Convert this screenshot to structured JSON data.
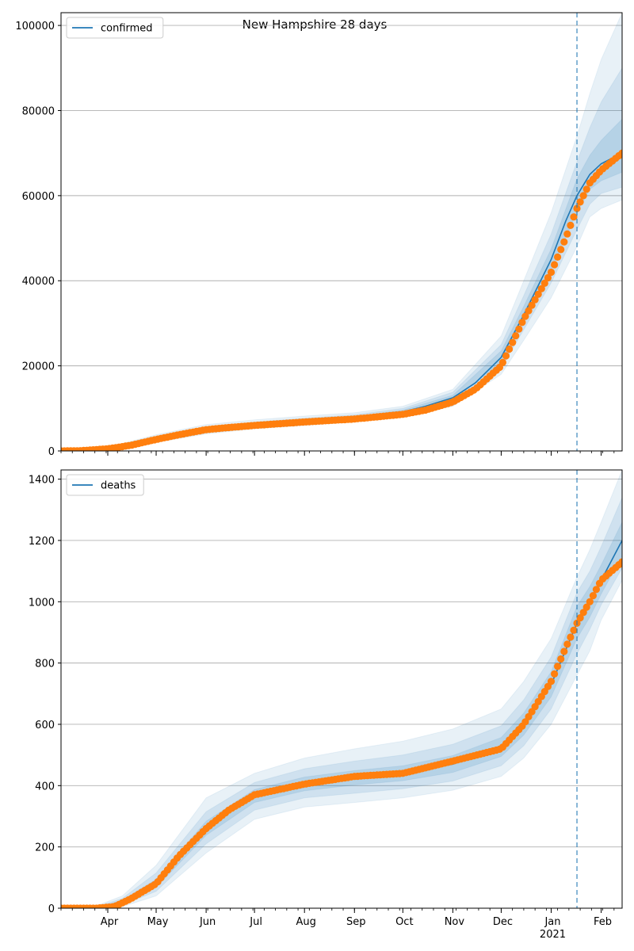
{
  "figure": {
    "title": "New Hampshire 28 days"
  },
  "colors": {
    "model_line": "#1f77b4",
    "observed": "#ff7f0e",
    "band": "#1f77b4",
    "grid": "#b0b0b0",
    "forecast_marker": "#1f77b4"
  },
  "chart_data": [
    {
      "type": "line",
      "legend": {
        "label": "confirmed",
        "position": "top-left"
      },
      "ylim": [
        0,
        103000
      ],
      "yticks": [
        0,
        20000,
        40000,
        60000,
        80000,
        100000
      ],
      "grid": true,
      "x_axis": {
        "start": "2020-03-03",
        "end": "2021-02-14",
        "show_labels": false
      },
      "forecast_start": "2021-01-17",
      "model": [
        [
          "2020-03-03",
          0
        ],
        [
          "2020-04-01",
          500
        ],
        [
          "2020-04-15",
          1500
        ],
        [
          "2020-05-01",
          2800
        ],
        [
          "2020-05-15",
          3800
        ],
        [
          "2020-06-01",
          5000
        ],
        [
          "2020-06-15",
          5600
        ],
        [
          "2020-07-01",
          6100
        ],
        [
          "2020-08-01",
          7000
        ],
        [
          "2020-09-01",
          7800
        ],
        [
          "2020-10-01",
          9200
        ],
        [
          "2020-10-15",
          10500
        ],
        [
          "2020-11-01",
          12500
        ],
        [
          "2020-11-15",
          16000
        ],
        [
          "2020-12-01",
          22000
        ],
        [
          "2020-12-15",
          32000
        ],
        [
          "2021-01-01",
          45000
        ],
        [
          "2021-01-10",
          54000
        ],
        [
          "2021-01-17",
          60000
        ],
        [
          "2021-01-25",
          65000
        ],
        [
          "2021-02-01",
          67500
        ],
        [
          "2021-02-14",
          70000
        ]
      ],
      "observed": [
        [
          "2020-03-03",
          0
        ],
        [
          "2020-03-15",
          50
        ],
        [
          "2020-04-01",
          500
        ],
        [
          "2020-04-15",
          1300
        ],
        [
          "2020-05-01",
          2700
        ],
        [
          "2020-05-15",
          3800
        ],
        [
          "2020-06-01",
          5000
        ],
        [
          "2020-06-15",
          5500
        ],
        [
          "2020-07-01",
          6000
        ],
        [
          "2020-08-01",
          6800
        ],
        [
          "2020-09-01",
          7500
        ],
        [
          "2020-10-01",
          8600
        ],
        [
          "2020-10-15",
          9600
        ],
        [
          "2020-11-01",
          11500
        ],
        [
          "2020-11-15",
          14500
        ],
        [
          "2020-12-01",
          20000
        ],
        [
          "2020-12-15",
          31000
        ],
        [
          "2021-01-01",
          42000
        ],
        [
          "2021-01-10",
          50000
        ],
        [
          "2021-01-17",
          57000
        ],
        [
          "2021-01-25",
          63000
        ],
        [
          "2021-02-01",
          66000
        ],
        [
          "2021-02-14",
          70000
        ]
      ],
      "bands": [
        {
          "opacity": 0.1,
          "points": [
            [
              "2020-03-03",
              0,
              300
            ],
            [
              "2020-04-01",
              300,
              900
            ],
            [
              "2020-05-01",
              2000,
              3800
            ],
            [
              "2020-06-01",
              4000,
              6200
            ],
            [
              "2020-07-01",
              5200,
              7300
            ],
            [
              "2020-08-01",
              6000,
              8200
            ],
            [
              "2020-09-01",
              6800,
              9000
            ],
            [
              "2020-10-01",
              8000,
              10500
            ],
            [
              "2020-11-01",
              10500,
              14500
            ],
            [
              "2020-12-01",
              18000,
              27000
            ],
            [
              "2020-12-15",
              26000,
              40000
            ],
            [
              "2021-01-01",
              36000,
              56000
            ],
            [
              "2021-01-17",
              48000,
              74000
            ],
            [
              "2021-01-25",
              55000,
              84000
            ],
            [
              "2021-02-01",
              57000,
              92000
            ],
            [
              "2021-02-14",
              59000,
              103000
            ]
          ]
        },
        {
          "opacity": 0.12,
          "points": [
            [
              "2020-03-03",
              0,
              200
            ],
            [
              "2020-04-01",
              380,
              700
            ],
            [
              "2020-05-01",
              2300,
              3400
            ],
            [
              "2020-06-01",
              4400,
              5700
            ],
            [
              "2020-07-01",
              5600,
              6800
            ],
            [
              "2020-08-01",
              6400,
              7700
            ],
            [
              "2020-09-01",
              7200,
              8500
            ],
            [
              "2020-10-01",
              8500,
              10000
            ],
            [
              "2020-11-01",
              11200,
              13800
            ],
            [
              "2020-12-01",
              19500,
              25000
            ],
            [
              "2020-12-15",
              28500,
              36500
            ],
            [
              "2021-01-01",
              39500,
              51000
            ],
            [
              "2021-01-17",
              52000,
              68000
            ],
            [
              "2021-01-25",
              58000,
              76000
            ],
            [
              "2021-02-01",
              60500,
              82000
            ],
            [
              "2021-02-14",
              62000,
              90000
            ]
          ]
        },
        {
          "opacity": 0.14,
          "points": [
            [
              "2020-03-03",
              0,
              100
            ],
            [
              "2020-04-01",
              440,
              580
            ],
            [
              "2020-05-01",
              2600,
              3050
            ],
            [
              "2020-06-01",
              4750,
              5300
            ],
            [
              "2020-07-01",
              5900,
              6350
            ],
            [
              "2020-08-01",
              6750,
              7250
            ],
            [
              "2020-09-01",
              7550,
              8100
            ],
            [
              "2020-10-01",
              8900,
              9600
            ],
            [
              "2020-11-01",
              11900,
              13100
            ],
            [
              "2020-12-01",
              20800,
              23500
            ],
            [
              "2020-12-15",
              30300,
              34000
            ],
            [
              "2021-01-01",
              42500,
              47500
            ],
            [
              "2021-01-17",
              56000,
              64000
            ],
            [
              "2021-01-25",
              61500,
              69500
            ],
            [
              "2021-02-01",
              63500,
              73000
            ],
            [
              "2021-02-14",
              65500,
              78000
            ]
          ]
        }
      ]
    },
    {
      "type": "line",
      "legend": {
        "label": "deaths",
        "position": "top-left"
      },
      "ylim": [
        0,
        1430
      ],
      "yticks": [
        0,
        200,
        400,
        600,
        800,
        1000,
        1200,
        1400
      ],
      "grid": true,
      "x_axis": {
        "start": "2020-03-03",
        "end": "2021-02-14",
        "show_labels": true,
        "ticks": [
          [
            "2020-04-01",
            "Apr",
            ""
          ],
          [
            "2020-05-01",
            "May",
            ""
          ],
          [
            "2020-06-01",
            "Jun",
            ""
          ],
          [
            "2020-07-01",
            "Jul",
            ""
          ],
          [
            "2020-08-01",
            "Aug",
            ""
          ],
          [
            "2020-09-01",
            "Sep",
            ""
          ],
          [
            "2020-10-01",
            "Oct",
            ""
          ],
          [
            "2020-11-01",
            "Nov",
            ""
          ],
          [
            "2020-12-01",
            "Dec",
            ""
          ],
          [
            "2021-01-01",
            "Jan",
            "2021"
          ],
          [
            "2021-02-01",
            "Feb",
            ""
          ]
        ]
      },
      "forecast_start": "2021-01-17",
      "model": [
        [
          "2020-03-03",
          0
        ],
        [
          "2020-03-25",
          0
        ],
        [
          "2020-04-10",
          20
        ],
        [
          "2020-05-01",
          80
        ],
        [
          "2020-05-15",
          170
        ],
        [
          "2020-06-01",
          260
        ],
        [
          "2020-06-15",
          320
        ],
        [
          "2020-07-01",
          365
        ],
        [
          "2020-08-01",
          405
        ],
        [
          "2020-09-01",
          425
        ],
        [
          "2020-10-01",
          440
        ],
        [
          "2020-11-01",
          470
        ],
        [
          "2020-12-01",
          525
        ],
        [
          "2020-12-15",
          600
        ],
        [
          "2021-01-01",
          730
        ],
        [
          "2021-01-17",
          930
        ],
        [
          "2021-01-25",
          1000
        ],
        [
          "2021-02-01",
          1070
        ],
        [
          "2021-02-14",
          1200
        ]
      ],
      "observed": [
        [
          "2020-03-03",
          0
        ],
        [
          "2020-03-25",
          0
        ],
        [
          "2020-04-05",
          5
        ],
        [
          "2020-04-15",
          30
        ],
        [
          "2020-05-01",
          80
        ],
        [
          "2020-05-15",
          170
        ],
        [
          "2020-06-01",
          260
        ],
        [
          "2020-06-15",
          320
        ],
        [
          "2020-07-01",
          370
        ],
        [
          "2020-08-01",
          405
        ],
        [
          "2020-09-01",
          430
        ],
        [
          "2020-10-01",
          440
        ],
        [
          "2020-11-01",
          480
        ],
        [
          "2020-12-01",
          520
        ],
        [
          "2020-12-15",
          600
        ],
        [
          "2021-01-01",
          740
        ],
        [
          "2021-01-10",
          850
        ],
        [
          "2021-01-17",
          930
        ],
        [
          "2021-01-25",
          1000
        ],
        [
          "2021-02-01",
          1070
        ],
        [
          "2021-02-14",
          1130
        ]
      ],
      "bands": [
        {
          "opacity": 0.1,
          "points": [
            [
              "2020-03-03",
              0,
              0
            ],
            [
              "2020-03-25",
              0,
              8
            ],
            [
              "2020-04-10",
              5,
              40
            ],
            [
              "2020-05-01",
              40,
              140
            ],
            [
              "2020-06-01",
              180,
              360
            ],
            [
              "2020-07-01",
              290,
              440
            ],
            [
              "2020-08-01",
              330,
              490
            ],
            [
              "2020-09-01",
              345,
              520
            ],
            [
              "2020-10-01",
              360,
              545
            ],
            [
              "2020-11-01",
              385,
              585
            ],
            [
              "2020-12-01",
              430,
              650
            ],
            [
              "2020-12-15",
              490,
              740
            ],
            [
              "2021-01-01",
              600,
              880
            ],
            [
              "2021-01-17",
              760,
              1080
            ],
            [
              "2021-01-25",
              840,
              1170
            ],
            [
              "2021-02-01",
              940,
              1260
            ],
            [
              "2021-02-14",
              1070,
              1430
            ]
          ]
        },
        {
          "opacity": 0.12,
          "points": [
            [
              "2020-03-03",
              0,
              0
            ],
            [
              "2020-03-25",
              0,
              5
            ],
            [
              "2020-04-10",
              10,
              32
            ],
            [
              "2020-05-01",
              55,
              115
            ],
            [
              "2020-06-01",
              210,
              315
            ],
            [
              "2020-07-01",
              320,
              410
            ],
            [
              "2020-08-01",
              360,
              455
            ],
            [
              "2020-09-01",
              375,
              480
            ],
            [
              "2020-10-01",
              390,
              500
            ],
            [
              "2020-11-01",
              415,
              535
            ],
            [
              "2020-12-01",
              465,
              595
            ],
            [
              "2020-12-15",
              530,
              680
            ],
            [
              "2021-01-01",
              650,
              820
            ],
            [
              "2021-01-17",
              830,
              1030
            ],
            [
              "2021-01-25",
              910,
              1100
            ],
            [
              "2021-02-01",
              990,
              1180
            ],
            [
              "2021-02-14",
              1110,
              1340
            ]
          ]
        },
        {
          "opacity": 0.14,
          "points": [
            [
              "2020-03-03",
              0,
              0
            ],
            [
              "2020-03-25",
              0,
              2
            ],
            [
              "2020-04-10",
              15,
              26
            ],
            [
              "2020-05-01",
              68,
              94
            ],
            [
              "2020-06-01",
              238,
              284
            ],
            [
              "2020-07-01",
              345,
              387
            ],
            [
              "2020-08-01",
              383,
              428
            ],
            [
              "2020-09-01",
              402,
              449
            ],
            [
              "2020-10-01",
              416,
              465
            ],
            [
              "2020-11-01",
              443,
              498
            ],
            [
              "2020-12-01",
              495,
              557
            ],
            [
              "2020-12-15",
              565,
              637
            ],
            [
              "2021-01-01",
              690,
              772
            ],
            [
              "2021-01-17",
              880,
              985
            ],
            [
              "2021-01-25",
              950,
              1050
            ],
            [
              "2021-02-01",
              1025,
              1120
            ],
            [
              "2021-02-14",
              1150,
              1260
            ]
          ]
        }
      ]
    }
  ]
}
